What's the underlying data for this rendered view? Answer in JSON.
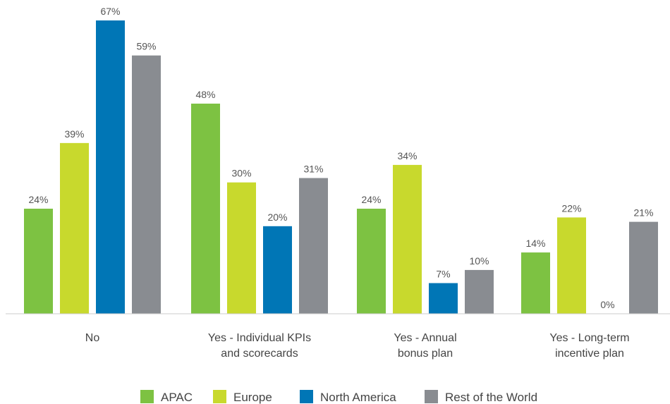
{
  "chart_data": {
    "type": "bar",
    "categories": [
      "No",
      "Yes - Individual KPIs and scorecards",
      "Yes - Annual bonus plan",
      "Yes - Long-term incentive plan"
    ],
    "category_lines": [
      [
        "No"
      ],
      [
        "Yes - Individual KPIs",
        "and scorecards"
      ],
      [
        "Yes - Annual",
        "bonus plan"
      ],
      [
        "Yes - Long-term",
        "incentive plan"
      ]
    ],
    "series": [
      {
        "name": "APAC",
        "color": "#7dc242",
        "values": [
          24,
          48,
          24,
          14
        ]
      },
      {
        "name": "Europe",
        "color": "#c8d92d",
        "values": [
          39,
          30,
          34,
          22
        ]
      },
      {
        "name": "North America",
        "color": "#0076b6",
        "values": [
          67,
          20,
          7,
          0
        ]
      },
      {
        "name": "Rest of the World",
        "color": "#898c91",
        "values": [
          59,
          31,
          10,
          21
        ]
      }
    ],
    "value_suffix": "%",
    "ylim": [
      0,
      67
    ],
    "grid": false,
    "legend_position": "bottom"
  }
}
